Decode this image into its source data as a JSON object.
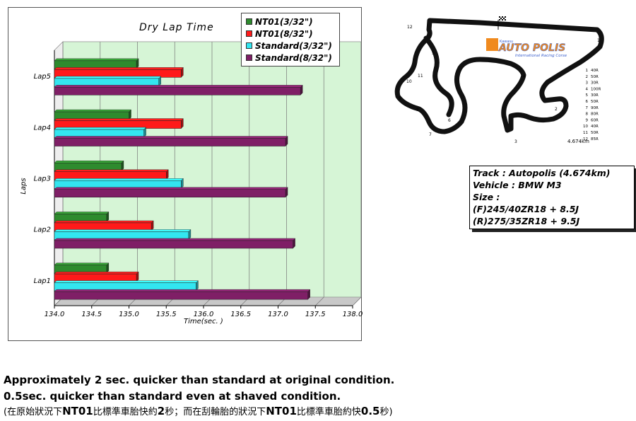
{
  "chart_data": {
    "type": "bar",
    "orientation": "horizontal",
    "title": "Dry  Lap  Time",
    "xlabel": "Time(sec. )",
    "ylabel": "Laps",
    "xlim": [
      134.0,
      138.0
    ],
    "xticks": [
      "134.0",
      "134.5",
      "135.0",
      "135.5",
      "136.0",
      "136.5",
      "137.0",
      "137.5",
      "138.0"
    ],
    "grid": true,
    "legend_position": "top-right",
    "categories": [
      "Lap1",
      "Lap2",
      "Lap3",
      "Lap4",
      "Lap5"
    ],
    "series": [
      {
        "name": "NT01(3/32\")",
        "color": "#2e8b2e",
        "values": [
          134.7,
          134.7,
          134.9,
          135.0,
          135.1
        ]
      },
      {
        "name": "NT01(8/32\")",
        "color": "#ff1a1a",
        "values": [
          135.1,
          135.3,
          135.5,
          135.7,
          135.7
        ]
      },
      {
        "name": "Standard(3/32\")",
        "color": "#33e6f0",
        "values": [
          135.9,
          135.8,
          135.7,
          135.2,
          135.4
        ]
      },
      {
        "name": "Standard(8/32\")",
        "color": "#7f1f66",
        "values": [
          137.4,
          137.2,
          137.1,
          137.1,
          137.3
        ]
      }
    ]
  },
  "track": {
    "name": "Kawasu AUTO POLIS",
    "subtitle": "International Racing Course",
    "length": "4.674km",
    "corner_numbers": [
      "1",
      "2",
      "3",
      "4",
      "5",
      "6",
      "7",
      "8",
      "9",
      "10",
      "11",
      "12"
    ],
    "corners": [
      {
        "no": "1",
        "radius": "40R"
      },
      {
        "no": "2",
        "radius": "50R"
      },
      {
        "no": "3",
        "radius": "30R"
      },
      {
        "no": "4",
        "radius": "100R"
      },
      {
        "no": "5",
        "radius": "30R"
      },
      {
        "no": "6",
        "radius": "50R"
      },
      {
        "no": "7",
        "radius": "90R"
      },
      {
        "no": "8",
        "radius": "80R"
      },
      {
        "no": "9",
        "radius": "60R"
      },
      {
        "no": "10",
        "radius": "40R"
      },
      {
        "no": "11",
        "radius": "50R"
      },
      {
        "no": "12",
        "radius": "85R"
      }
    ]
  },
  "info": {
    "track": "Track : Autopolis (4.674km)",
    "vehicle": "Vehicle : BMW M3",
    "size": "Size :",
    "front": "(F)245/40ZR18 + 8.5J",
    "rear": "(R)275/35ZR18 + 9.5J"
  },
  "notes": {
    "line1": "Approximately 2 sec. quicker than standard at original condition.",
    "line2": "0.5sec. quicker than standard even at shaved condition.",
    "line3": [
      {
        "t": "(在原始狀況下",
        "b": false
      },
      {
        "t": "NT01",
        "b": true
      },
      {
        "t": "比標準車胎快約",
        "b": false
      },
      {
        "t": "2",
        "b": true
      },
      {
        "t": "秒；而在刮輪胎的狀況下",
        "b": false
      },
      {
        "t": "NT01",
        "b": true
      },
      {
        "t": "比標準車胎約快",
        "b": false
      },
      {
        "t": "0.5",
        "b": true
      },
      {
        "t": "秒)",
        "b": false
      }
    ]
  }
}
